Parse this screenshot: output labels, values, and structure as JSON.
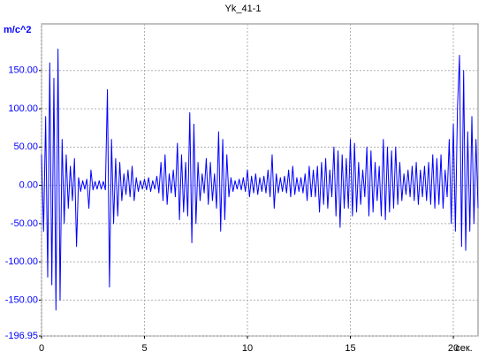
{
  "chart_data": {
    "type": "line",
    "title": "Yk_41-1",
    "y_label": "m/c^2",
    "x_label": "сек.",
    "color": "#0000ff",
    "grid": true,
    "xlim": [
      0,
      21.2
    ],
    "ylim": [
      -196.95,
      211
    ],
    "xticks": [
      0,
      5,
      10,
      15,
      20
    ],
    "yticks": [
      {
        "value": 150,
        "label": "150.00"
      },
      {
        "value": 100,
        "label": "100.00"
      },
      {
        "value": 50,
        "label": "50.00"
      },
      {
        "value": 0,
        "label": "0.00"
      },
      {
        "value": -50,
        "label": "-50.00"
      },
      {
        "value": -100,
        "label": "-100.00"
      },
      {
        "value": -150,
        "label": "-150.00"
      },
      -196.95
    ],
    "x": [
      0,
      0.1,
      0.2,
      0.3,
      0.4,
      0.5,
      0.6,
      0.7,
      0.8,
      0.9,
      1,
      1.1,
      1.2,
      1.3,
      1.4,
      1.5,
      1.6,
      1.7,
      1.8,
      1.9,
      2,
      2.1,
      2.2,
      2.3,
      2.4,
      2.5,
      2.6,
      2.7,
      2.8,
      2.9,
      3,
      3.1,
      3.2,
      3.3,
      3.4,
      3.5,
      3.6,
      3.7,
      3.8,
      3.9,
      4,
      4.1,
      4.2,
      4.3,
      4.4,
      4.5,
      4.6,
      4.7,
      4.8,
      4.9,
      5,
      5.1,
      5.2,
      5.3,
      5.4,
      5.5,
      5.6,
      5.7,
      5.8,
      5.9,
      6,
      6.1,
      6.2,
      6.3,
      6.4,
      6.5,
      6.6,
      6.7,
      6.8,
      6.9,
      7,
      7.1,
      7.2,
      7.3,
      7.4,
      7.5,
      7.6,
      7.7,
      7.8,
      7.9,
      8,
      8.1,
      8.2,
      8.3,
      8.4,
      8.5,
      8.6,
      8.7,
      8.8,
      8.9,
      9,
      9.1,
      9.2,
      9.3,
      9.4,
      9.5,
      9.6,
      9.7,
      9.8,
      9.9,
      10,
      10.1,
      10.2,
      10.3,
      10.4,
      10.5,
      10.6,
      10.7,
      10.8,
      10.9,
      11,
      11.1,
      11.2,
      11.3,
      11.4,
      11.5,
      11.6,
      11.7,
      11.8,
      11.9,
      12,
      12.1,
      12.2,
      12.3,
      12.4,
      12.5,
      12.6,
      12.7,
      12.8,
      12.9,
      13,
      13.1,
      13.2,
      13.3,
      13.4,
      13.5,
      13.6,
      13.7,
      13.8,
      13.9,
      14,
      14.1,
      14.2,
      14.3,
      14.4,
      14.5,
      14.6,
      14.7,
      14.8,
      14.9,
      15,
      15.1,
      15.2,
      15.3,
      15.4,
      15.5,
      15.6,
      15.7,
      15.8,
      15.9,
      16,
      16.1,
      16.2,
      16.3,
      16.4,
      16.5,
      16.6,
      16.7,
      16.8,
      16.9,
      17,
      17.1,
      17.2,
      17.3,
      17.4,
      17.5,
      17.6,
      17.7,
      17.8,
      17.9,
      18,
      18.1,
      18.2,
      18.3,
      18.4,
      18.5,
      18.6,
      18.7,
      18.8,
      18.9,
      19,
      19.1,
      19.2,
      19.3,
      19.4,
      19.5,
      19.6,
      19.7,
      19.8,
      19.9,
      20,
      20.1,
      20.2,
      20.3,
      20.4,
      20.5,
      20.6,
      20.7,
      20.8,
      20.9,
      21,
      21.1,
      21.2
    ],
    "values": [
      40,
      -60,
      90,
      -120,
      160,
      -130,
      140,
      -163,
      178,
      -150,
      60,
      -50,
      40,
      -30,
      25,
      -20,
      35,
      -80,
      10,
      -8,
      6,
      -5,
      8,
      -30,
      20,
      -6,
      5,
      -5,
      6,
      -5,
      5,
      -6,
      125,
      -133,
      60,
      -50,
      35,
      -40,
      30,
      -20,
      15,
      -12,
      20,
      -15,
      25,
      -20,
      10,
      -8,
      6,
      -5,
      8,
      -6,
      10,
      -8,
      6,
      -5,
      12,
      -10,
      30,
      -20,
      40,
      -25,
      15,
      -10,
      20,
      -15,
      55,
      -45,
      40,
      -35,
      30,
      -40,
      95,
      -75,
      80,
      -50,
      30,
      -20,
      15,
      -10,
      35,
      -25,
      30,
      -20,
      15,
      -30,
      70,
      -60,
      60,
      -45,
      40,
      -15,
      10,
      -8,
      6,
      -5,
      8,
      -6,
      10,
      -8,
      20,
      -15,
      12,
      -10,
      15,
      -12,
      10,
      -8,
      12,
      -10,
      20,
      -15,
      40,
      -30,
      15,
      -10,
      10,
      -8,
      12,
      -10,
      20,
      -15,
      25,
      -12,
      10,
      -8,
      10,
      -10,
      15,
      -20,
      25,
      -15,
      20,
      -15,
      25,
      -35,
      30,
      -25,
      35,
      -30,
      20,
      -15,
      50,
      -40,
      45,
      -55,
      40,
      -30,
      35,
      -30,
      60,
      -40,
      55,
      -35,
      30,
      -25,
      20,
      -15,
      50,
      -40,
      45,
      -35,
      30,
      -20,
      25,
      -40,
      60,
      -45,
      50,
      -35,
      45,
      -30,
      50,
      -25,
      30,
      -20,
      15,
      -12,
      20,
      -15,
      25,
      -20,
      30,
      -25,
      20,
      -15,
      25,
      -20,
      30,
      -25,
      40,
      -30,
      35,
      -25,
      40,
      -30,
      20,
      -15,
      60,
      -50,
      80,
      -60,
      100,
      170,
      -80,
      150,
      -85,
      70,
      -60,
      90,
      -50,
      60,
      -30
    ]
  }
}
